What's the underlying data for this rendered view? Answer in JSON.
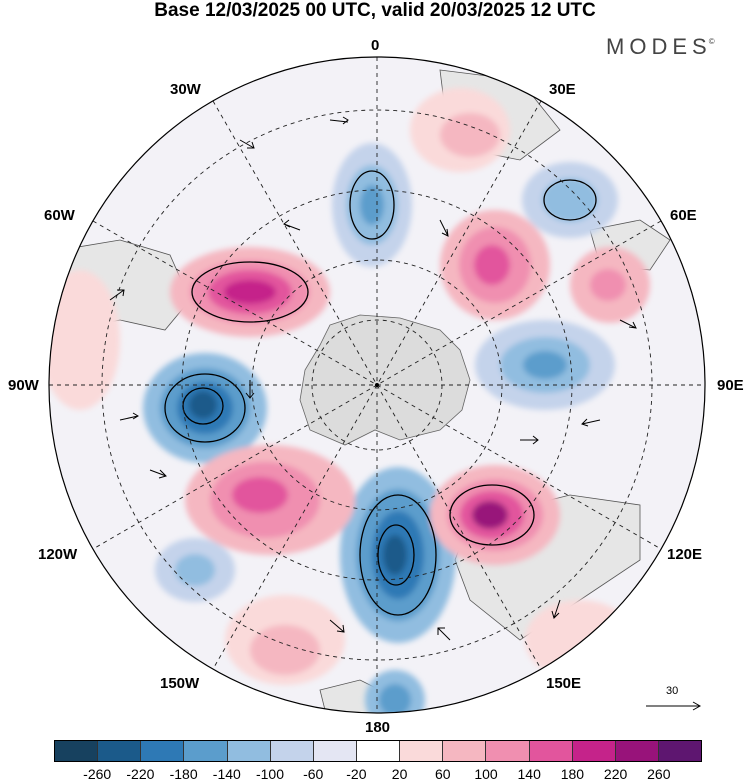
{
  "title": "Base 12/03/2025 00 UTC, valid 20/03/2025 12 UTC",
  "brand": "MODES",
  "brand_mark": "©",
  "lon_labels": {
    "lon_0": "0",
    "lon_30E": "30E",
    "lon_60E": "60E",
    "lon_90E": "90E",
    "lon_120E": "120E",
    "lon_150E": "150E",
    "lon_180": "180",
    "lon_150W": "150W",
    "lon_120W": "120W",
    "lon_90W": "90W",
    "lon_60W": "60W",
    "lon_30W": "30W"
  },
  "reference_vector": {
    "value": "30"
  },
  "colorbar": {
    "colors": [
      "#17415f",
      "#1b5a8a",
      "#2e79b5",
      "#5b9dcc",
      "#91bde0",
      "#c4d3eb",
      "#e4e6f3",
      "#ffffff",
      "#fadada",
      "#f5b7c1",
      "#f08fb0",
      "#e2559d",
      "#c5238a",
      "#98137a",
      "#5e1670"
    ],
    "ticks": [
      "-260",
      "-220",
      "-180",
      "-140",
      "-100",
      "-60",
      "-20",
      "20",
      "60",
      "100",
      "140",
      "180",
      "220",
      "260"
    ]
  },
  "colors": {
    "land": "#e6e6e6",
    "antarctica": "#dcdcdc",
    "land_outline": "#555555"
  }
}
